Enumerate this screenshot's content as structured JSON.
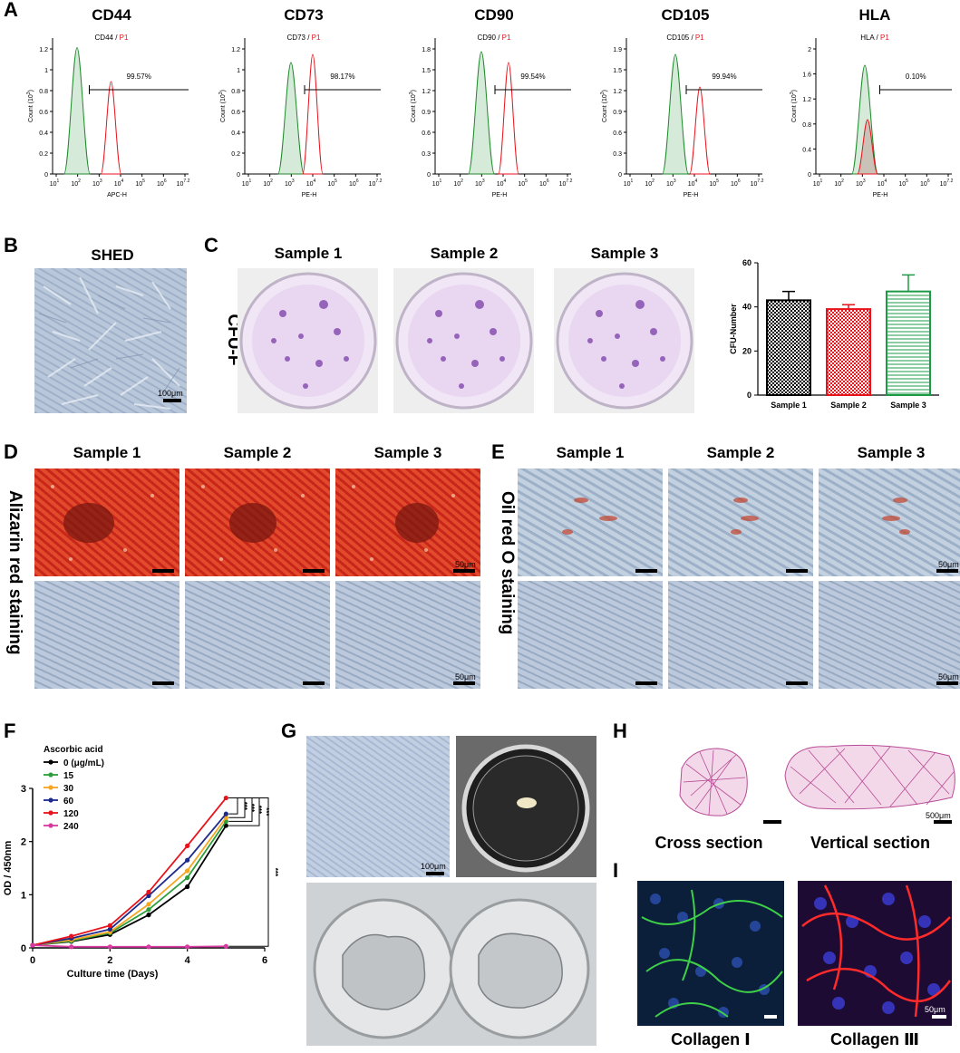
{
  "panels": {
    "A": "A",
    "B": "B",
    "C": "C",
    "D": "D",
    "E": "E",
    "F": "F",
    "G": "G",
    "H": "H",
    "I": "I"
  },
  "flow": {
    "ytitle": "Count (10",
    "ysup": "3",
    "ytitle_end": ")",
    "xticks": [
      "10",
      "10",
      "10",
      "10",
      "10",
      "10",
      "10"
    ],
    "xexps": [
      "1",
      "2",
      "3",
      "4",
      "5",
      "6",
      "7.2"
    ],
    "marker": "P1",
    "plots": [
      {
        "title": "CD44",
        "subtitle": "CD44 / ",
        "gate": "99.57%",
        "xlabel": "APC-H",
        "yticks": [
          "0",
          "0.2",
          "0.4",
          "0.6",
          "0.8",
          "1",
          "1.2"
        ]
      },
      {
        "title": "CD73",
        "subtitle": "CD73 / ",
        "gate": "98.17%",
        "xlabel": "PE-H",
        "yticks": [
          "0",
          "0.2",
          "0.4",
          "0.6",
          "0.8",
          "1",
          "1.2"
        ]
      },
      {
        "title": "CD90",
        "subtitle": "CD90 / ",
        "gate": "99.54%",
        "xlabel": "PE-H",
        "yticks": [
          "0",
          "0.3",
          "0.6",
          "0.9",
          "1.2",
          "1.5",
          "1.8"
        ]
      },
      {
        "title": "CD105",
        "subtitle": "CD105 / ",
        "gate": "99.94%",
        "xlabel": "PE-H",
        "yticks": [
          "0",
          "0.3",
          "0.6",
          "0.9",
          "1.2",
          "1.5",
          "1.9"
        ]
      },
      {
        "title": "HLA",
        "subtitle": "HLA / ",
        "gate": "0.10%",
        "xlabel": "PE-H",
        "yticks": [
          "0",
          "0.4",
          "0.8",
          "1.2",
          "1.6",
          "2"
        ]
      }
    ]
  },
  "shed": {
    "title": "SHED",
    "scale": "100μm"
  },
  "cfu": {
    "row_label": "CFU-F",
    "samples": [
      "Sample 1",
      "Sample 2",
      "Sample 3"
    ]
  },
  "chart_data": [
    {
      "type": "bar",
      "ylabel": "CFU-Number",
      "categories": [
        "Sample 1",
        "Sample 2",
        "Sample 3"
      ],
      "values": [
        43,
        39,
        47
      ],
      "errors": [
        4,
        2,
        7.5
      ],
      "ylim": [
        0,
        60
      ],
      "yticks": [
        "0",
        "20",
        "40",
        "60"
      ],
      "colors": [
        "#000000",
        "#e8121b",
        "#1d9a45"
      ]
    },
    {
      "type": "line",
      "legend_title": "Ascorbic acid",
      "xlabel": "Culture time (Days)",
      "ylabel": "OD / 450nm",
      "xlim": [
        0,
        6
      ],
      "ylim": [
        0,
        3
      ],
      "xticks": [
        "0",
        "2",
        "4",
        "6"
      ],
      "yticks": [
        "0",
        "1",
        "2",
        "3"
      ],
      "x": [
        0,
        1,
        2,
        3,
        4,
        5
      ],
      "series": [
        {
          "name": "0 (μg/mL)",
          "color": "#000000",
          "values": [
            0.05,
            0.12,
            0.25,
            0.62,
            1.15,
            2.3
          ]
        },
        {
          "name": "15",
          "color": "#2e9e3c",
          "values": [
            0.05,
            0.13,
            0.28,
            0.72,
            1.32,
            2.38
          ]
        },
        {
          "name": "30",
          "color": "#f5a623",
          "values": [
            0.05,
            0.15,
            0.3,
            0.82,
            1.45,
            2.45
          ]
        },
        {
          "name": "60",
          "color": "#1c2a8a",
          "values": [
            0.05,
            0.18,
            0.35,
            0.98,
            1.65,
            2.52
          ]
        },
        {
          "name": "120",
          "color": "#e8121b",
          "values": [
            0.05,
            0.22,
            0.42,
            1.05,
            1.92,
            2.82
          ]
        },
        {
          "name": "240",
          "color": "#d63aa0",
          "values": [
            0.05,
            0.02,
            0.02,
            0.02,
            0.02,
            0.03
          ]
        }
      ],
      "annotations": [
        "***",
        "***",
        "***",
        "***",
        "***"
      ]
    }
  ],
  "osteo": {
    "row_label": "Alizarin red staining",
    "samples": [
      "Sample 1",
      "Sample 2",
      "Sample 3"
    ],
    "scale": "50μm"
  },
  "adipo": {
    "row_label": "Oil red O staining",
    "samples": [
      "Sample 1",
      "Sample 2",
      "Sample 3"
    ],
    "scale": "50μm"
  },
  "sheet": {
    "scale": "100μm"
  },
  "histology": {
    "cross": "Cross section",
    "vertical": "Vertical section",
    "scale": "500μm"
  },
  "collagen": {
    "c1": "Collagen Ⅰ",
    "c3": "Collagen Ⅲ",
    "scale": "50μm"
  }
}
